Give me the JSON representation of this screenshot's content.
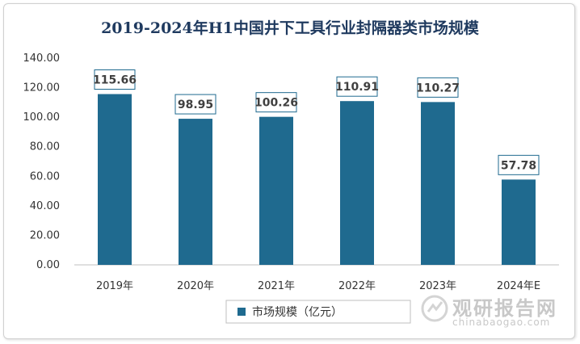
{
  "chart_data": {
    "type": "bar",
    "title": "2019-2024年H1中国井下工具行业封隔器类市场规模",
    "categories": [
      "2019年",
      "2020年",
      "2021年",
      "2022年",
      "2023年",
      "2024年E"
    ],
    "series": [
      {
        "name": "市场规模（亿元）",
        "values": [
          115.66,
          98.95,
          100.26,
          110.91,
          110.27,
          57.78
        ]
      }
    ],
    "value_labels": [
      "115.66",
      "98.95",
      "100.26",
      "110.91",
      "110.27",
      "57.78"
    ],
    "yticks": [
      "0.00",
      "20.00",
      "40.00",
      "60.00",
      "80.00",
      "100.00",
      "120.00",
      "140.00"
    ],
    "ylim": [
      0,
      140
    ],
    "legend_position": "bottom",
    "grid": false,
    "bar_color": "#1f6a8f"
  },
  "watermark": {
    "name": "观研报告网",
    "url": "chinabaogao.com"
  }
}
